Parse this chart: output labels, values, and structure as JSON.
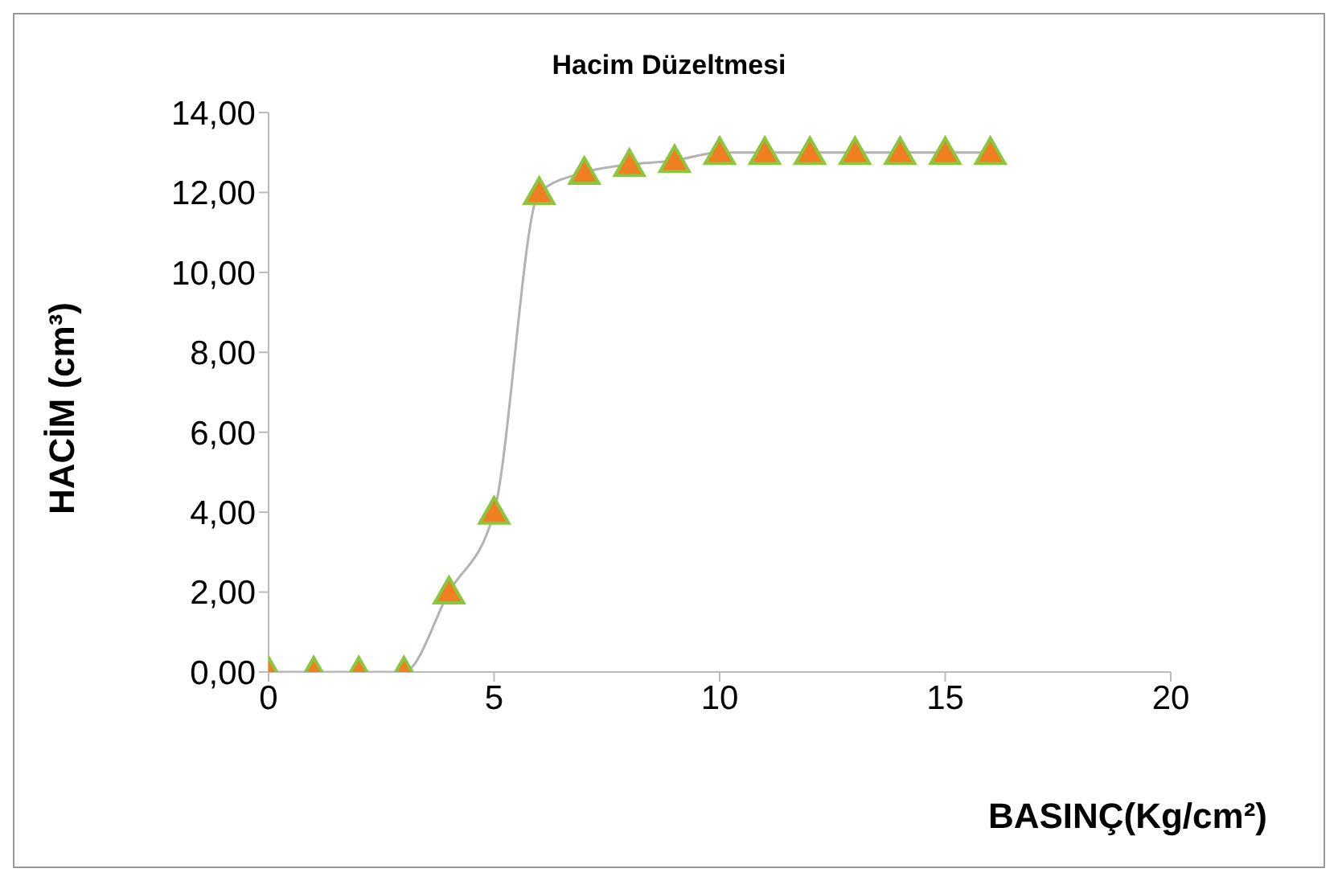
{
  "chart_data": {
    "type": "line",
    "title": "Hacim Düzeltmesi",
    "xlabel": "BASINÇ(Kg/cm²)",
    "ylabel": "HACİM (cm³)",
    "x": [
      0,
      1,
      2,
      3,
      4,
      5,
      6,
      7,
      8,
      9,
      10,
      11,
      12,
      13,
      14,
      15,
      16
    ],
    "series": [
      {
        "color": "#f07f22",
        "values": [
          0,
          0,
          0,
          0,
          2,
          4,
          12,
          12.5,
          12.7,
          12.8,
          13,
          13,
          13,
          13,
          13,
          13,
          13
        ]
      }
    ],
    "xlim": [
      0,
      20
    ],
    "xticks": [
      0,
      5,
      10,
      15,
      20
    ],
    "ylim": [
      0,
      14
    ],
    "yticks": [
      {
        "value": 0,
        "label": "0,00"
      },
      {
        "value": 2,
        "label": "2,00"
      },
      {
        "value": 4,
        "label": "4,00"
      },
      {
        "value": 6,
        "label": "6,00"
      },
      {
        "value": 8,
        "label": "8,00"
      },
      {
        "value": 10,
        "label": "10,00"
      },
      {
        "value": 12,
        "label": "12,00"
      },
      {
        "value": 14,
        "label": "14,00"
      }
    ],
    "grid": false,
    "legend": false,
    "marker": "triangle",
    "line_style": "solid"
  }
}
